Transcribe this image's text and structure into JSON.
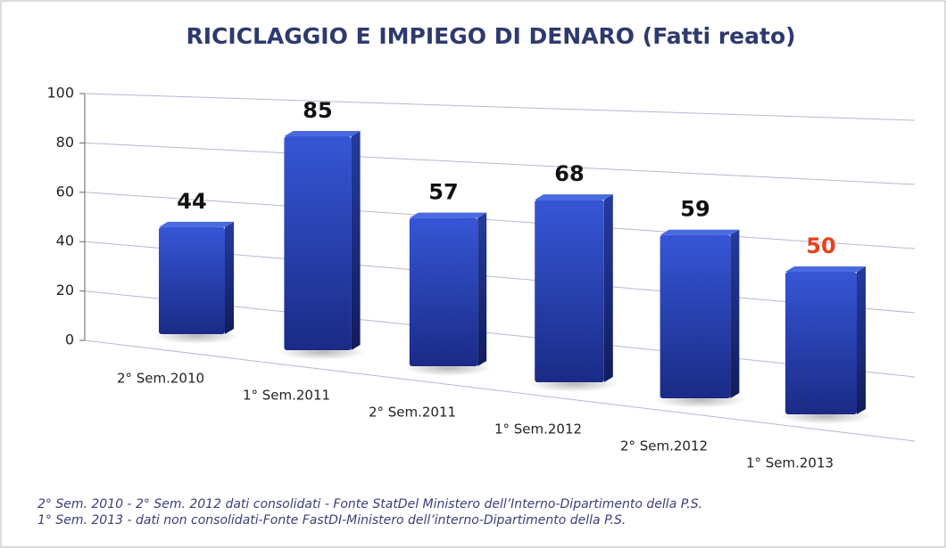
{
  "chart_data": {
    "type": "bar3d",
    "title": "RICICLAGGIO E IMPIEGO DI DENARO (Fatti reato)",
    "categories": [
      "2° Sem.2010",
      "1° Sem.2011",
      "2° Sem.2011",
      "1° Sem.2012",
      "2° Sem.2012",
      "1° Sem.2013"
    ],
    "values": [
      44,
      85,
      57,
      68,
      59,
      50
    ],
    "label_colors": [
      "#111111",
      "#111111",
      "#111111",
      "#111111",
      "#111111",
      "#e8401c"
    ],
    "color": "#2f4fc4",
    "ylim": [
      0,
      100
    ],
    "yticks": [
      0,
      20,
      40,
      60,
      80,
      100
    ],
    "grid": true,
    "notes": [
      "2° Sem. 2010 - 2° Sem. 2012 dati consolidati - Fonte StatDel Ministero dell’Interno-Dipartimento della P.S.",
      "1° Sem. 2013 - dati non consolidati-Fonte FastDI-Ministero dell’interno-Dipartimento della P.S."
    ]
  }
}
